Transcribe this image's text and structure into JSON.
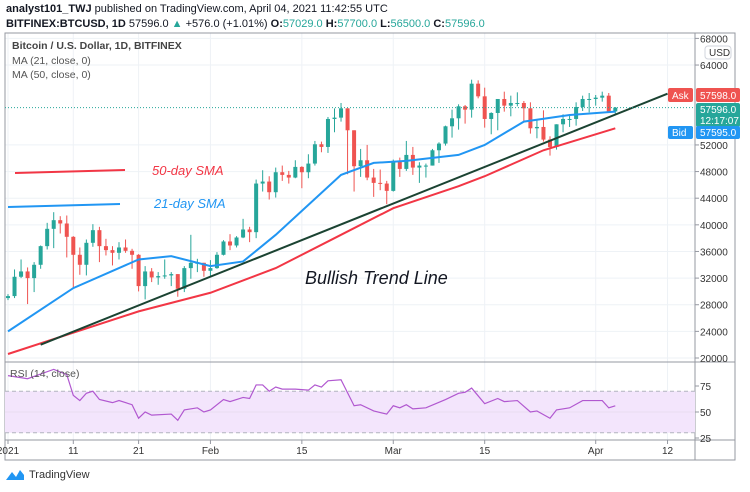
{
  "header": {
    "author": "analyst101_TWJ",
    "published": "published on TradingView.com, April 04, 2021 11:42:55 UTC",
    "symbol": "BITFINEX:BTCUSD, 1D",
    "last": "57596.0",
    "change": "+576.0 (+1.01%)",
    "o_label": "O:",
    "o": "57029.0",
    "h_label": "H:",
    "h": "57700.0",
    "l_label": "L:",
    "l": "56500.0",
    "c_label": "C:",
    "c": "57596.0"
  },
  "legend": {
    "title": "Bitcoin / U.S. Dollar, 1D, BITFINEX",
    "ma21": "MA (21, close, 0)",
    "ma50": "MA (50, close, 0)",
    "rsi": "RSI (14, close)"
  },
  "annotations": {
    "sma50": "50-day SMA",
    "sma21": "21-day SMA",
    "trend": "Bullish Trend Line"
  },
  "price_axis": {
    "currency": "USD",
    "ticks": [
      68000,
      64000,
      52000,
      48000,
      44000,
      40000,
      36000,
      32000,
      28000,
      24000,
      20000
    ],
    "ask_label": "Ask",
    "ask": "57598.0",
    "last": "57596.0",
    "countdown": "12:17:07",
    "bid_label": "Bid",
    "bid": "57595.0"
  },
  "rsi_axis": {
    "ticks": [
      75,
      50,
      25
    ],
    "upper": 70,
    "lower": 30
  },
  "date_axis": [
    {
      "label": "2021",
      "date": "2021-01-01"
    },
    {
      "label": "11",
      "date": "2021-01-11"
    },
    {
      "label": "21",
      "date": "2021-01-21"
    },
    {
      "label": "Feb",
      "date": "2021-02-01"
    },
    {
      "label": "15",
      "date": "2021-02-15"
    },
    {
      "label": "Mar",
      "date": "2021-03-01"
    },
    {
      "label": "15",
      "date": "2021-03-15"
    },
    {
      "label": "Apr",
      "date": "2021-04-01"
    },
    {
      "label": "12",
      "date": "2021-04-12"
    }
  ],
  "colors": {
    "up": "#26a69a",
    "down": "#ef5350",
    "ma21": "#2196f3",
    "ma50": "#f23645",
    "trend": "#1b4332",
    "rsi": "#b158d0",
    "rsi_band": "#f3e5fc",
    "ask": "#ef5350",
    "bid": "#2196f3"
  },
  "brand": "TradingView",
  "chart_data": {
    "type": "candlestick",
    "first_date": "2021-01-01",
    "interval": "1D",
    "ylim": [
      20000,
      68000
    ],
    "ohlc": [
      [
        29000,
        29600,
        28700,
        29300
      ],
      [
        29300,
        33300,
        29000,
        32200
      ],
      [
        32200,
        34800,
        32000,
        33000
      ],
      [
        33000,
        33600,
        28100,
        32000
      ],
      [
        32000,
        34400,
        29900,
        34000
      ],
      [
        34000,
        36900,
        33400,
        36800
      ],
      [
        36800,
        40300,
        36300,
        39400
      ],
      [
        39400,
        41900,
        36500,
        40700
      ],
      [
        40700,
        41300,
        38700,
        40200
      ],
      [
        40200,
        41400,
        35100,
        38200
      ],
      [
        38200,
        38300,
        30400,
        35500
      ],
      [
        35500,
        36600,
        32500,
        34000
      ],
      [
        34000,
        37800,
        32400,
        37300
      ],
      [
        37300,
        40100,
        36700,
        39200
      ],
      [
        39200,
        39700,
        34400,
        36800
      ],
      [
        36800,
        37900,
        35400,
        36200
      ],
      [
        36200,
        36800,
        33900,
        35800
      ],
      [
        35800,
        37400,
        34800,
        36600
      ],
      [
        36600,
        37800,
        35800,
        36100
      ],
      [
        36100,
        36400,
        33400,
        35500
      ],
      [
        35500,
        35600,
        30000,
        30800
      ],
      [
        30800,
        33800,
        28800,
        33000
      ],
      [
        33000,
        33500,
        31400,
        32100
      ],
      [
        32100,
        32900,
        31000,
        32300
      ],
      [
        32300,
        34800,
        31900,
        32400
      ],
      [
        32400,
        32900,
        30800,
        32600
      ],
      [
        32600,
        32600,
        29200,
        30400
      ],
      [
        30400,
        33800,
        29900,
        33500
      ],
      [
        33500,
        38500,
        31900,
        34300
      ],
      [
        34300,
        34900,
        32900,
        34300
      ],
      [
        34300,
        34300,
        32200,
        33100
      ],
      [
        33100,
        34700,
        32300,
        33500
      ],
      [
        33500,
        35900,
        33400,
        35500
      ],
      [
        35500,
        37700,
        35400,
        37500
      ],
      [
        37500,
        38600,
        36200,
        36900
      ],
      [
        36900,
        38300,
        36600,
        38100
      ],
      [
        38100,
        40900,
        38000,
        39300
      ],
      [
        39300,
        39700,
        37400,
        38900
      ],
      [
        38900,
        46800,
        38000,
        46200
      ],
      [
        46200,
        48200,
        45000,
        46500
      ],
      [
        46500,
        47300,
        43800,
        44900
      ],
      [
        44900,
        48600,
        44100,
        47900
      ],
      [
        47900,
        48900,
        46600,
        47500
      ],
      [
        47500,
        48100,
        46200,
        47100
      ],
      [
        47100,
        49700,
        47000,
        48700
      ],
      [
        48700,
        48800,
        45500,
        47900
      ],
      [
        47900,
        50600,
        47000,
        49200
      ],
      [
        49200,
        52600,
        48900,
        52100
      ],
      [
        52100,
        52500,
        50900,
        51700
      ],
      [
        51700,
        56200,
        50800,
        55900
      ],
      [
        55900,
        57500,
        53900,
        56100
      ],
      [
        56100,
        58300,
        55500,
        57500
      ],
      [
        57500,
        57500,
        47600,
        54200
      ],
      [
        54200,
        54200,
        45000,
        48800
      ],
      [
        48800,
        51400,
        47200,
        49700
      ],
      [
        49700,
        52000,
        46700,
        47100
      ],
      [
        47100,
        48400,
        44200,
        46300
      ],
      [
        46300,
        48300,
        45200,
        46200
      ],
      [
        46200,
        46600,
        43100,
        45100
      ],
      [
        45100,
        49800,
        45000,
        49600
      ],
      [
        49600,
        50100,
        47200,
        48400
      ],
      [
        48400,
        52600,
        48100,
        50500
      ],
      [
        50500,
        51700,
        47500,
        48600
      ],
      [
        48600,
        49400,
        46300,
        48900
      ],
      [
        48900,
        49200,
        47100,
        48900
      ],
      [
        48900,
        51400,
        48900,
        51200
      ],
      [
        51200,
        52400,
        49300,
        52200
      ],
      [
        52200,
        54900,
        51900,
        54800
      ],
      [
        54800,
        57300,
        53100,
        56000
      ],
      [
        56000,
        58100,
        54300,
        57800
      ],
      [
        57800,
        58000,
        55200,
        57300
      ],
      [
        57300,
        61800,
        56100,
        61200
      ],
      [
        61200,
        61700,
        59000,
        59300
      ],
      [
        59300,
        60600,
        54600,
        55900
      ],
      [
        55900,
        56900,
        53600,
        56800
      ],
      [
        56800,
        58900,
        54200,
        58900
      ],
      [
        58900,
        60000,
        57000,
        57900
      ],
      [
        57900,
        59400,
        56300,
        58300
      ],
      [
        58300,
        59900,
        57800,
        58300
      ],
      [
        58300,
        58600,
        55500,
        57500
      ],
      [
        57500,
        58400,
        53700,
        54500
      ],
      [
        54500,
        55900,
        53000,
        54700
      ],
      [
        54700,
        57200,
        52500,
        52800
      ],
      [
        52800,
        53300,
        50400,
        51700
      ],
      [
        51700,
        55100,
        51300,
        55100
      ],
      [
        55100,
        56600,
        53900,
        55900
      ],
      [
        55900,
        56600,
        54700,
        55900
      ],
      [
        55900,
        58400,
        54900,
        57700
      ],
      [
        57700,
        59400,
        57100,
        58900
      ],
      [
        58900,
        59800,
        56900,
        58900
      ],
      [
        58900,
        59500,
        57900,
        59100
      ],
      [
        59100,
        60000,
        58500,
        59400
      ],
      [
        59400,
        59800,
        57000,
        57000
      ],
      [
        57029,
        57700,
        56500,
        57596
      ]
    ],
    "ma21": [
      [
        "2021-01-01",
        24000
      ],
      [
        "2021-01-11",
        30500
      ],
      [
        "2021-01-21",
        34800
      ],
      [
        "2021-01-26",
        35300
      ],
      [
        "2021-02-01",
        33800
      ],
      [
        "2021-02-06",
        34500
      ],
      [
        "2021-02-11",
        38500
      ],
      [
        "2021-02-16",
        43000
      ],
      [
        "2021-02-21",
        47500
      ],
      [
        "2021-02-26",
        49300
      ],
      [
        "2021-03-03",
        49600
      ],
      [
        "2021-03-11",
        50500
      ],
      [
        "2021-03-15",
        52000
      ],
      [
        "2021-03-21",
        55500
      ],
      [
        "2021-03-28",
        56500
      ],
      [
        "2021-04-04",
        57000
      ]
    ],
    "ma50": [
      [
        "2021-01-01",
        20600
      ],
      [
        "2021-01-11",
        23800
      ],
      [
        "2021-01-21",
        27000
      ],
      [
        "2021-02-01",
        29800
      ],
      [
        "2021-02-11",
        33500
      ],
      [
        "2021-02-21",
        38500
      ],
      [
        "2021-03-01",
        42500
      ],
      [
        "2021-03-11",
        45800
      ],
      [
        "2021-03-15",
        47300
      ],
      [
        "2021-03-24",
        51200
      ],
      [
        "2021-04-04",
        54500
      ]
    ],
    "trend_line": [
      [
        "2021-01-06",
        22000
      ],
      [
        "2021-04-12",
        59700
      ]
    ],
    "rsi": [
      [
        "2021-01-01",
        85
      ],
      [
        "2021-01-04",
        82
      ],
      [
        "2021-01-08",
        91
      ],
      [
        "2021-01-10",
        86
      ],
      [
        "2021-01-11",
        66
      ],
      [
        "2021-01-12",
        61
      ],
      [
        "2021-01-13",
        68
      ],
      [
        "2021-01-14",
        70
      ],
      [
        "2021-01-15",
        62
      ],
      [
        "2021-01-17",
        59
      ],
      [
        "2021-01-18",
        61
      ],
      [
        "2021-01-20",
        57
      ],
      [
        "2021-01-21",
        44
      ],
      [
        "2021-01-22",
        50
      ],
      [
        "2021-01-23",
        47
      ],
      [
        "2021-01-26",
        48
      ],
      [
        "2021-01-27",
        42
      ],
      [
        "2021-01-28",
        52
      ],
      [
        "2021-01-30",
        54
      ],
      [
        "2021-01-31",
        50
      ],
      [
        "2021-02-01",
        52
      ],
      [
        "2021-02-03",
        62
      ],
      [
        "2021-02-04",
        60
      ],
      [
        "2021-02-06",
        64
      ],
      [
        "2021-02-07",
        63
      ],
      [
        "2021-02-08",
        76
      ],
      [
        "2021-02-09",
        76
      ],
      [
        "2021-02-10",
        70
      ],
      [
        "2021-02-11",
        74
      ],
      [
        "2021-02-12",
        72
      ],
      [
        "2021-02-14",
        72
      ],
      [
        "2021-02-16",
        71
      ],
      [
        "2021-02-17",
        76
      ],
      [
        "2021-02-18",
        74
      ],
      [
        "2021-02-19",
        80
      ],
      [
        "2021-02-21",
        81
      ],
      [
        "2021-02-23",
        56
      ],
      [
        "2021-02-24",
        57
      ],
      [
        "2021-02-26",
        51
      ],
      [
        "2021-02-28",
        48
      ],
      [
        "2021-03-01",
        56
      ],
      [
        "2021-03-02",
        54
      ],
      [
        "2021-03-03",
        57
      ],
      [
        "2021-03-04",
        53
      ],
      [
        "2021-03-06",
        54
      ],
      [
        "2021-03-09",
        62
      ],
      [
        "2021-03-11",
        68
      ],
      [
        "2021-03-12",
        69
      ],
      [
        "2021-03-13",
        73
      ],
      [
        "2021-03-15",
        58
      ],
      [
        "2021-03-17",
        63
      ],
      [
        "2021-03-18",
        60
      ],
      [
        "2021-03-20",
        61
      ],
      [
        "2021-03-22",
        50
      ],
      [
        "2021-03-23",
        51
      ],
      [
        "2021-03-25",
        44
      ],
      [
        "2021-03-26",
        52
      ],
      [
        "2021-03-28",
        54
      ],
      [
        "2021-03-30",
        61
      ],
      [
        "2021-04-02",
        61
      ],
      [
        "2021-04-03",
        54
      ],
      [
        "2021-04-04",
        56
      ]
    ]
  }
}
